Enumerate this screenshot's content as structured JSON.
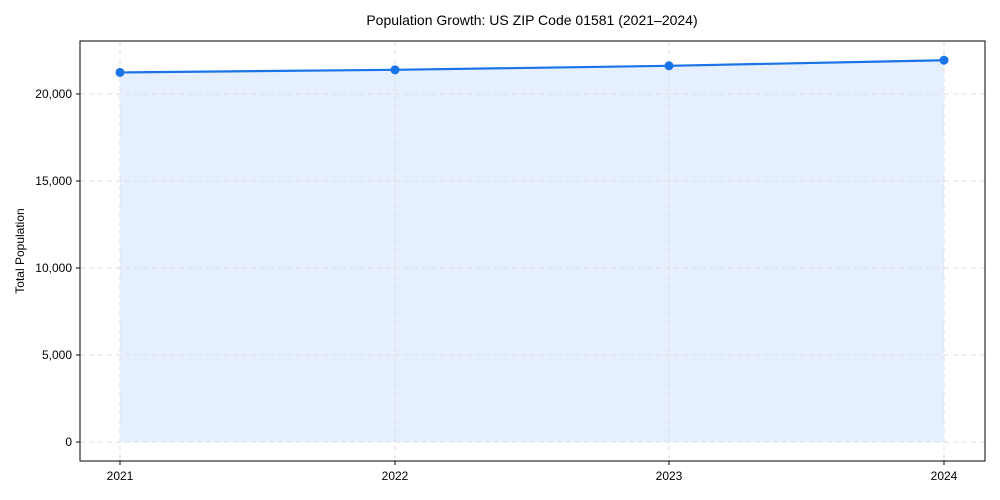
{
  "chart_data": {
    "type": "area",
    "title": "Population Growth: US ZIP Code 01581 (2021–2024)",
    "xlabel": "",
    "ylabel": "Total Population",
    "categories": [
      "2021",
      "2022",
      "2023",
      "2024"
    ],
    "series": [
      {
        "name": "Total Population",
        "values": [
          21240,
          21390,
          21620,
          21940
        ]
      }
    ],
    "ylim": [
      -1100,
      23000
    ],
    "yticks": [
      0,
      5000,
      10000,
      15000,
      20000
    ],
    "ytick_labels": [
      "0",
      "5,000",
      "10,000",
      "15,000",
      "20,000"
    ],
    "grid": true,
    "legend": null,
    "colors": {
      "line": "#1a73e8",
      "fill": "#e6effd",
      "grid": "#dddddd"
    }
  }
}
